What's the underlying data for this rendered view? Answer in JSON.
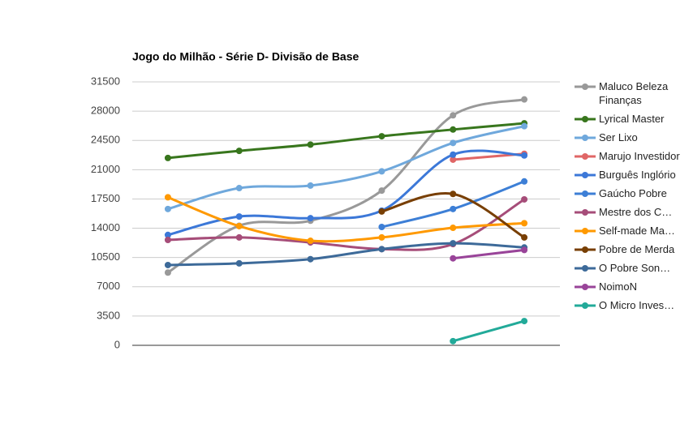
{
  "chart_data": {
    "type": "line",
    "title": "Jogo do Milhão - Série D- Divisão de Base",
    "categories": [
      null,
      null,
      null,
      null,
      null,
      null
    ],
    "ylim": [
      0,
      31500
    ],
    "yticks": [
      0,
      3500,
      7000,
      10500,
      14000,
      17500,
      21000,
      24500,
      28000,
      31500
    ],
    "grid": true,
    "legend": "right",
    "series": [
      {
        "name": "Maluco Beleza Finanças",
        "color": "#999999",
        "values": [
          8700,
          14300,
          14900,
          18500,
          27500,
          29400
        ]
      },
      {
        "name": "Lyrical Master",
        "color": "#38761d",
        "values": [
          22400,
          23250,
          24000,
          25000,
          25800,
          26550
        ]
      },
      {
        "name": "Ser Lixo",
        "color": "#6fa8dc",
        "values": [
          16300,
          18800,
          19100,
          20800,
          24200,
          26200
        ]
      },
      {
        "name": "Marujo Investidor",
        "color": "#e06666",
        "values": [
          null,
          null,
          null,
          null,
          22200,
          22900
        ]
      },
      {
        "name": "Burguês Inglório",
        "color": "#3c78d8",
        "values": [
          13200,
          15400,
          15200,
          16100,
          22800,
          22700
        ]
      },
      {
        "name": "Gaúcho Pobre",
        "color": "#3d7fd6",
        "values": [
          null,
          null,
          null,
          14150,
          16300,
          19600
        ]
      },
      {
        "name": "Mestre dos C…",
        "color": "#a64d79",
        "values": [
          12600,
          12900,
          12300,
          11500,
          12100,
          17450
        ]
      },
      {
        "name": "Self-made Ma…",
        "color": "#ff9900",
        "values": [
          17700,
          14250,
          12500,
          12900,
          14050,
          14600
        ]
      },
      {
        "name": "Pobre de Merda",
        "color": "#783f04",
        "values": [
          null,
          null,
          null,
          16000,
          18100,
          12900
        ]
      },
      {
        "name": "O Pobre Son…",
        "color": "#3d6a99",
        "values": [
          9600,
          9800,
          10300,
          11500,
          12200,
          11700
        ]
      },
      {
        "name": "NoimoN",
        "color": "#994499",
        "values": [
          null,
          null,
          null,
          null,
          10400,
          11400
        ]
      },
      {
        "name": "O Micro Inves…",
        "color": "#22aa99",
        "values": [
          null,
          null,
          null,
          null,
          500,
          2900
        ]
      }
    ]
  }
}
